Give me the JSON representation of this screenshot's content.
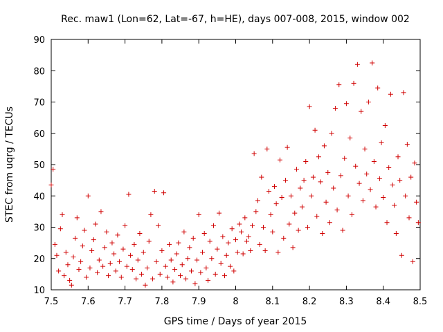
{
  "chart_data": {
    "type": "scatter",
    "title": "Rec. maw1 (Lon=62, Lat=-67, h=HE), days 007-008, 2015, window 002",
    "xlabel": "GPS time / Days of year 2015",
    "ylabel": "STEC from uqrg / TECUs",
    "xlim": [
      7.5,
      8.5
    ],
    "ylim": [
      10,
      90
    ],
    "xticks": [
      "7.5",
      "7.6",
      "7.7",
      "7.8",
      "7.9",
      "8",
      "8.1",
      "8.2",
      "8.3",
      "8.4",
      "8.5"
    ],
    "yticks": [
      "10",
      "20",
      "30",
      "40",
      "50",
      "60",
      "70",
      "80",
      "90"
    ],
    "marker": "+",
    "color": "#d00000",
    "grid": false,
    "series": [
      {
        "name": "STEC",
        "points": [
          [
            7.5,
            43.5
          ],
          [
            7.505,
            48.5
          ],
          [
            7.51,
            24.5
          ],
          [
            7.515,
            21.0
          ],
          [
            7.52,
            16.0
          ],
          [
            7.525,
            29.5
          ],
          [
            7.53,
            34.0
          ],
          [
            7.535,
            14.5
          ],
          [
            7.54,
            22.0
          ],
          [
            7.545,
            18.0
          ],
          [
            7.55,
            13.0
          ],
          [
            7.555,
            11.5
          ],
          [
            7.56,
            20.5
          ],
          [
            7.565,
            26.5
          ],
          [
            7.57,
            33.0
          ],
          [
            7.575,
            16.5
          ],
          [
            7.58,
            19.0
          ],
          [
            7.585,
            24.0
          ],
          [
            7.59,
            29.0
          ],
          [
            7.595,
            14.0
          ],
          [
            7.6,
            40.0
          ],
          [
            7.605,
            17.0
          ],
          [
            7.61,
            22.5
          ],
          [
            7.615,
            26.0
          ],
          [
            7.62,
            31.0
          ],
          [
            7.625,
            15.5
          ],
          [
            7.63,
            19.5
          ],
          [
            7.635,
            35.0
          ],
          [
            7.64,
            17.5
          ],
          [
            7.645,
            23.5
          ],
          [
            7.65,
            28.5
          ],
          [
            7.655,
            14.5
          ],
          [
            7.66,
            18.5
          ],
          [
            7.665,
            25.0
          ],
          [
            7.67,
            21.5
          ],
          [
            7.675,
            16.0
          ],
          [
            7.68,
            27.5
          ],
          [
            7.685,
            19.0
          ],
          [
            7.69,
            14.0
          ],
          [
            7.695,
            23.0
          ],
          [
            7.7,
            30.5
          ],
          [
            7.705,
            17.5
          ],
          [
            7.71,
            40.5
          ],
          [
            7.715,
            21.0
          ],
          [
            7.72,
            16.5
          ],
          [
            7.725,
            24.5
          ],
          [
            7.73,
            13.5
          ],
          [
            7.735,
            19.5
          ],
          [
            7.74,
            28.0
          ],
          [
            7.745,
            15.0
          ],
          [
            7.75,
            22.0
          ],
          [
            7.755,
            11.5
          ],
          [
            7.76,
            17.0
          ],
          [
            7.765,
            25.5
          ],
          [
            7.77,
            34.0
          ],
          [
            7.775,
            13.5
          ],
          [
            7.78,
            41.5
          ],
          [
            7.785,
            19.0
          ],
          [
            7.79,
            30.5
          ],
          [
            7.795,
            15.0
          ],
          [
            7.8,
            22.5
          ],
          [
            7.805,
            41.0
          ],
          [
            7.81,
            17.5
          ],
          [
            7.815,
            14.0
          ],
          [
            7.82,
            24.5
          ],
          [
            7.825,
            19.5
          ],
          [
            7.83,
            12.5
          ],
          [
            7.835,
            16.5
          ],
          [
            7.84,
            21.5
          ],
          [
            7.845,
            25.0
          ],
          [
            7.85,
            14.5
          ],
          [
            7.855,
            18.0
          ],
          [
            7.86,
            28.5
          ],
          [
            7.865,
            13.5
          ],
          [
            7.87,
            20.0
          ],
          [
            7.875,
            23.5
          ],
          [
            7.88,
            16.0
          ],
          [
            7.885,
            26.5
          ],
          [
            7.89,
            12.0
          ],
          [
            7.895,
            19.5
          ],
          [
            7.9,
            34.0
          ],
          [
            7.905,
            15.5
          ],
          [
            7.91,
            22.0
          ],
          [
            7.915,
            28.0
          ],
          [
            7.92,
            17.0
          ],
          [
            7.925,
            13.0
          ],
          [
            7.93,
            25.5
          ],
          [
            7.935,
            20.0
          ],
          [
            7.94,
            30.5
          ],
          [
            7.945,
            15.0
          ],
          [
            7.95,
            23.0
          ],
          [
            7.955,
            34.5
          ],
          [
            7.96,
            18.5
          ],
          [
            7.965,
            27.0
          ],
          [
            7.97,
            14.5
          ],
          [
            7.975,
            21.0
          ],
          [
            7.98,
            25.0
          ],
          [
            7.985,
            17.5
          ],
          [
            7.99,
            29.5
          ],
          [
            7.995,
            16.0
          ],
          [
            8.0,
            26.0
          ],
          [
            8.005,
            22.0
          ],
          [
            8.01,
            31.0
          ],
          [
            8.015,
            28.5
          ],
          [
            8.02,
            21.5
          ],
          [
            8.025,
            33.0
          ],
          [
            8.03,
            25.5
          ],
          [
            8.035,
            27.0
          ],
          [
            8.04,
            22.5
          ],
          [
            8.045,
            30.5
          ],
          [
            8.05,
            53.5
          ],
          [
            8.055,
            35.0
          ],
          [
            8.06,
            38.5
          ],
          [
            8.065,
            24.5
          ],
          [
            8.07,
            46.0
          ],
          [
            8.075,
            30.0
          ],
          [
            8.08,
            22.5
          ],
          [
            8.085,
            55.0
          ],
          [
            8.09,
            41.5
          ],
          [
            8.095,
            34.0
          ],
          [
            8.1,
            28.5
          ],
          [
            8.105,
            43.0
          ],
          [
            8.11,
            37.5
          ],
          [
            8.115,
            22.0
          ],
          [
            8.12,
            51.5
          ],
          [
            8.125,
            39.5
          ],
          [
            8.13,
            26.5
          ],
          [
            8.135,
            45.0
          ],
          [
            8.14,
            55.5
          ],
          [
            8.145,
            31.0
          ],
          [
            8.15,
            40.0
          ],
          [
            8.155,
            23.5
          ],
          [
            8.16,
            34.5
          ],
          [
            8.165,
            48.5
          ],
          [
            8.17,
            29.0
          ],
          [
            8.175,
            42.5
          ],
          [
            8.18,
            36.5
          ],
          [
            8.185,
            45.0
          ],
          [
            8.19,
            51.0
          ],
          [
            8.195,
            30.0
          ],
          [
            8.2,
            68.5
          ],
          [
            8.205,
            40.0
          ],
          [
            8.21,
            46.0
          ],
          [
            8.215,
            61.0
          ],
          [
            8.22,
            33.5
          ],
          [
            8.225,
            52.5
          ],
          [
            8.23,
            44.5
          ],
          [
            8.235,
            28.0
          ],
          [
            8.24,
            56.0
          ],
          [
            8.245,
            38.0
          ],
          [
            8.25,
            47.5
          ],
          [
            8.255,
            31.5
          ],
          [
            8.26,
            60.0
          ],
          [
            8.265,
            42.5
          ],
          [
            8.27,
            68.0
          ],
          [
            8.275,
            35.5
          ],
          [
            8.28,
            75.5
          ],
          [
            8.285,
            46.5
          ],
          [
            8.29,
            29.0
          ],
          [
            8.295,
            52.0
          ],
          [
            8.3,
            69.5
          ],
          [
            8.305,
            40.0
          ],
          [
            8.31,
            58.5
          ],
          [
            8.315,
            34.0
          ],
          [
            8.32,
            76.0
          ],
          [
            8.325,
            49.5
          ],
          [
            8.33,
            82.0
          ],
          [
            8.335,
            44.0
          ],
          [
            8.34,
            67.0
          ],
          [
            8.345,
            38.5
          ],
          [
            8.35,
            55.0
          ],
          [
            8.355,
            47.0
          ],
          [
            8.36,
            70.0
          ],
          [
            8.365,
            42.0
          ],
          [
            8.37,
            82.5
          ],
          [
            8.375,
            51.0
          ],
          [
            8.38,
            36.5
          ],
          [
            8.385,
            74.5
          ],
          [
            8.39,
            45.5
          ],
          [
            8.395,
            57.0
          ],
          [
            8.4,
            39.5
          ],
          [
            8.405,
            62.5
          ],
          [
            8.41,
            31.5
          ],
          [
            8.415,
            49.0
          ],
          [
            8.42,
            72.5
          ],
          [
            8.425,
            43.5
          ],
          [
            8.43,
            37.0
          ],
          [
            8.435,
            28.0
          ],
          [
            8.44,
            52.5
          ],
          [
            8.445,
            45.0
          ],
          [
            8.45,
            21.0
          ],
          [
            8.455,
            73.0
          ],
          [
            8.46,
            40.0
          ],
          [
            8.465,
            56.5
          ],
          [
            8.47,
            33.0
          ],
          [
            8.475,
            46.0
          ],
          [
            8.48,
            19.0
          ],
          [
            8.485,
            50.5
          ],
          [
            8.49,
            38.0
          ],
          [
            8.495,
            31.5
          ]
        ]
      }
    ]
  }
}
